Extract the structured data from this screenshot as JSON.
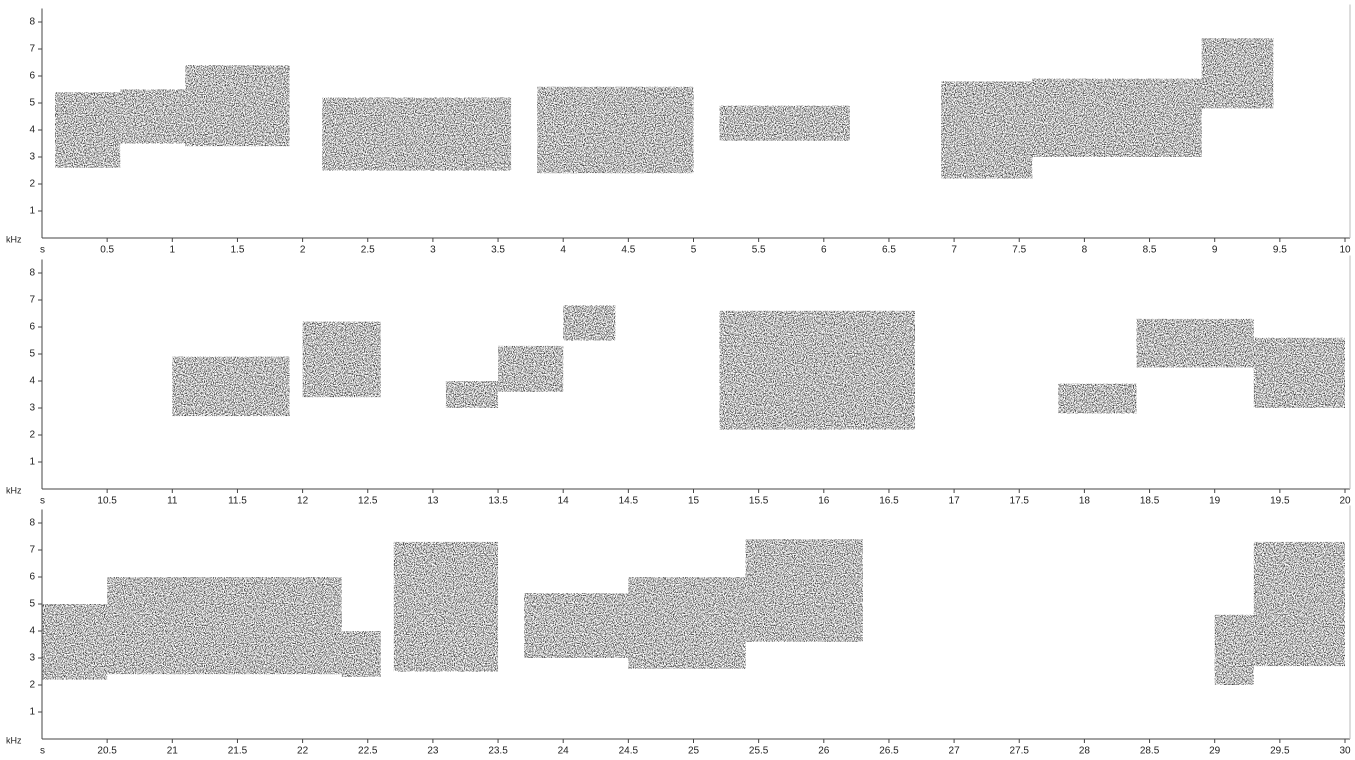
{
  "chart_data": [
    {
      "type": "spectrogram",
      "x_label": "s",
      "y_label": "kHz",
      "xlim": [
        0,
        10
      ],
      "xticks": [
        0.5,
        1,
        1.5,
        2,
        2.5,
        3,
        3.5,
        4,
        4.5,
        5,
        5.5,
        6,
        6.5,
        7,
        7.5,
        8,
        8.5,
        9,
        9.5,
        10
      ],
      "ylim": [
        0,
        8.5
      ],
      "yticks": [
        1,
        2,
        3,
        4,
        5,
        6,
        7,
        8
      ],
      "color": "#333333",
      "segments": [
        {
          "t": [
            0.1,
            0.6
          ],
          "f": [
            2.6,
            5.4
          ]
        },
        {
          "t": [
            0.6,
            1.1
          ],
          "f": [
            3.5,
            5.5
          ]
        },
        {
          "t": [
            1.1,
            1.9
          ],
          "f": [
            3.4,
            6.4
          ]
        },
        {
          "t": [
            2.15,
            3.6
          ],
          "f": [
            2.5,
            5.2
          ]
        },
        {
          "t": [
            3.8,
            5.0
          ],
          "f": [
            2.4,
            5.6
          ]
        },
        {
          "t": [
            5.2,
            6.2
          ],
          "f": [
            3.6,
            4.9
          ]
        },
        {
          "t": [
            6.9,
            7.6
          ],
          "f": [
            2.2,
            5.8
          ]
        },
        {
          "t": [
            7.6,
            8.9
          ],
          "f": [
            3.0,
            5.9
          ]
        },
        {
          "t": [
            8.9,
            9.45
          ],
          "f": [
            4.8,
            7.4
          ]
        }
      ]
    },
    {
      "type": "spectrogram",
      "x_label": "s",
      "y_label": "kHz",
      "xlim": [
        10,
        20
      ],
      "xticks": [
        10.5,
        11,
        11.5,
        12,
        12.5,
        13,
        13.5,
        14,
        14.5,
        15,
        15.5,
        16,
        16.5,
        17,
        17.5,
        18,
        18.5,
        19,
        19.5,
        20
      ],
      "ylim": [
        0,
        8.5
      ],
      "yticks": [
        1,
        2,
        3,
        4,
        5,
        6,
        7,
        8
      ],
      "color": "#333333",
      "segments": [
        {
          "t": [
            11.0,
            11.9
          ],
          "f": [
            2.7,
            4.9
          ]
        },
        {
          "t": [
            12.0,
            12.6
          ],
          "f": [
            3.4,
            6.2
          ]
        },
        {
          "t": [
            13.1,
            13.5
          ],
          "f": [
            3.0,
            4.0
          ]
        },
        {
          "t": [
            13.5,
            14.0
          ],
          "f": [
            3.6,
            5.3
          ]
        },
        {
          "t": [
            14.0,
            14.4
          ],
          "f": [
            5.5,
            6.8
          ]
        },
        {
          "t": [
            15.2,
            16.7
          ],
          "f": [
            2.2,
            6.6
          ]
        },
        {
          "t": [
            17.8,
            18.4
          ],
          "f": [
            2.8,
            3.9
          ]
        },
        {
          "t": [
            18.4,
            19.3
          ],
          "f": [
            4.5,
            6.3
          ]
        },
        {
          "t": [
            19.3,
            20.0
          ],
          "f": [
            3.0,
            5.6
          ]
        }
      ]
    },
    {
      "type": "spectrogram",
      "x_label": "s",
      "y_label": "kHz",
      "xlim": [
        20,
        30
      ],
      "xticks": [
        20.5,
        21,
        21.5,
        22,
        22.5,
        23,
        23.5,
        24,
        24.5,
        25,
        25.5,
        26,
        26.5,
        27,
        27.5,
        28,
        28.5,
        29,
        29.5,
        30
      ],
      "ylim": [
        0,
        8.5
      ],
      "yticks": [
        1,
        2,
        3,
        4,
        5,
        6,
        7,
        8
      ],
      "color": "#333333",
      "segments": [
        {
          "t": [
            20.0,
            20.5
          ],
          "f": [
            2.2,
            5.0
          ]
        },
        {
          "t": [
            20.5,
            22.3
          ],
          "f": [
            2.4,
            6.0
          ]
        },
        {
          "t": [
            22.3,
            22.6
          ],
          "f": [
            2.3,
            4.0
          ]
        },
        {
          "t": [
            22.7,
            23.5
          ],
          "f": [
            2.5,
            7.3
          ]
        },
        {
          "t": [
            23.7,
            24.5
          ],
          "f": [
            3.0,
            5.4
          ]
        },
        {
          "t": [
            24.5,
            25.4
          ],
          "f": [
            2.6,
            6.0
          ]
        },
        {
          "t": [
            25.4,
            26.3
          ],
          "f": [
            3.6,
            7.4
          ]
        },
        {
          "t": [
            29.0,
            29.3
          ],
          "f": [
            2.0,
            4.6
          ]
        },
        {
          "t": [
            29.3,
            30.0
          ],
          "f": [
            2.7,
            7.3
          ]
        }
      ]
    }
  ]
}
